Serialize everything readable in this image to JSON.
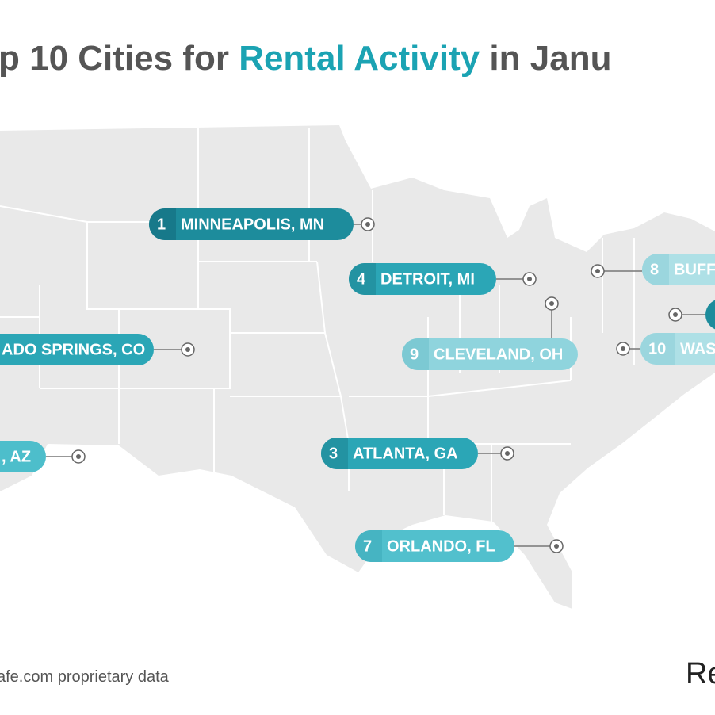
{
  "header": {
    "title_parts": [
      "p 10 Cities for ",
      "Rental Activity",
      " in Janu"
    ]
  },
  "markers": [
    {
      "rank": "1",
      "city": "MINNEAPOLIS, MN"
    },
    {
      "rank": "4",
      "city": "DETROIT, MI"
    },
    {
      "rank": "9",
      "city": "CLEVELAND, OH"
    },
    {
      "city": "ADO SPRINGS, CO"
    },
    {
      "city": ", AZ"
    },
    {
      "rank": "3",
      "city": "ATLANTA, GA"
    },
    {
      "rank": "7",
      "city": "ORLANDO, FL"
    },
    {
      "rank": "8",
      "city": "BUFF"
    },
    {
      "rank": "10",
      "city": "WAS"
    }
  ],
  "footer": {
    "source": "afe.com proprietary data",
    "logo": "Re"
  }
}
